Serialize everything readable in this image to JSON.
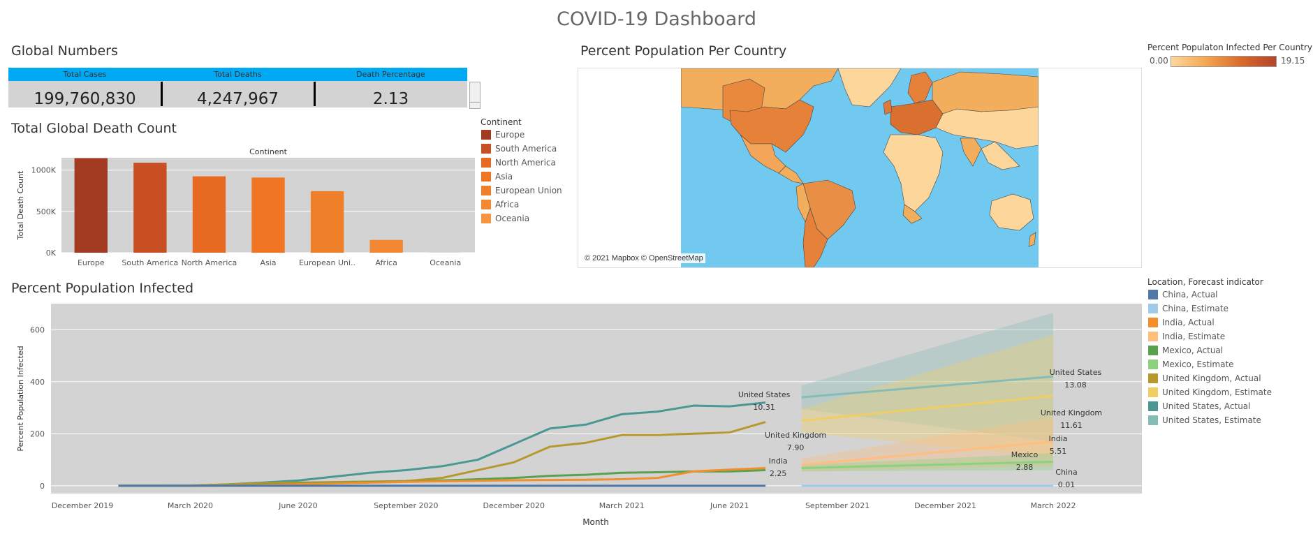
{
  "dashboard": {
    "title": "COVID-19 Dashboard"
  },
  "global_numbers": {
    "title": "Global Numbers",
    "headers": [
      "Total Cases",
      "Total Deaths",
      "Death Percentage"
    ],
    "values": [
      "199,760,830",
      "4,247,967",
      "2.13"
    ],
    "header_color": "#00a9f4"
  },
  "death_count": {
    "title": "Total Global Death Count",
    "legend_title": "Continent",
    "legend": [
      {
        "label": "Europe",
        "color": "#a33a22"
      },
      {
        "label": "South America",
        "color": "#c74f22"
      },
      {
        "label": "North America",
        "color": "#e66a22"
      },
      {
        "label": "Asia",
        "color": "#ef7522"
      },
      {
        "label": "European Union",
        "color": "#f07f29"
      },
      {
        "label": "Africa",
        "color": "#f48732"
      },
      {
        "label": "Oceania",
        "color": "#f79440"
      }
    ]
  },
  "map": {
    "title": "Percent Population Per Country",
    "credit": "© 2021 Mapbox © OpenStreetMap",
    "legend_title": "Percent Populaton Infected Per Country",
    "legend_min": "0.00",
    "legend_max": "19.15",
    "ocean_color": "#71c9ef"
  },
  "infected": {
    "title": "Percent Population Infected",
    "legend_title": "Location, Forecast indicator",
    "legend": [
      {
        "label": "China, Actual",
        "color": "#4e79a7"
      },
      {
        "label": "China, Estimate",
        "color": "#a0cbe8"
      },
      {
        "label": "India, Actual",
        "color": "#f28e2b"
      },
      {
        "label": "India, Estimate",
        "color": "#ffbe7d"
      },
      {
        "label": "Mexico, Actual",
        "color": "#59a14f"
      },
      {
        "label": "Mexico, Estimate",
        "color": "#8cd17d"
      },
      {
        "label": "United Kingdom, Actual",
        "color": "#b6992d"
      },
      {
        "label": "United Kingdom, Estimate",
        "color": "#f1ce63"
      },
      {
        "label": "United States, Actual",
        "color": "#499894"
      },
      {
        "label": "United States, Estimate",
        "color": "#86bcb6"
      }
    ]
  },
  "chart_data": [
    {
      "type": "bar",
      "title": "",
      "header": "Continent",
      "xlabel": "",
      "ylabel": "Total Death Count",
      "categories": [
        "Europe",
        "South America",
        "North America",
        "Asia",
        "European Union",
        "Africa",
        "Oceania"
      ],
      "tick_labels": [
        "Europe",
        "South America",
        "North America",
        "Asia",
        "European Uni..",
        "Africa",
        "Oceania"
      ],
      "values": [
        1145000,
        1090000,
        925000,
        910000,
        745000,
        155000,
        1200
      ],
      "ylim": [
        0,
        1150000
      ],
      "yticks": [
        0,
        500000,
        1000000
      ],
      "ytick_labels": [
        "0K",
        "500K",
        "1000K"
      ],
      "grid": true,
      "legend_position": "right"
    },
    {
      "type": "line",
      "title": "",
      "xlabel": "Month",
      "ylabel": "Percent Population Infected",
      "x_ticks": [
        "December 2019",
        "March 2020",
        "June 2020",
        "September 2020",
        "December 2020",
        "March 2021",
        "June 2021",
        "September 2021",
        "December 2021",
        "March 2022"
      ],
      "ylim": [
        -30,
        700
      ],
      "yticks": [
        0,
        200,
        400,
        600
      ],
      "grid": true,
      "legend_position": "right",
      "actual_months": [
        "2020-01",
        "2020-02",
        "2020-03",
        "2020-04",
        "2020-05",
        "2020-06",
        "2020-07",
        "2020-08",
        "2020-09",
        "2020-10",
        "2020-11",
        "2020-12",
        "2021-01",
        "2021-02",
        "2021-03",
        "2021-04",
        "2021-05",
        "2021-06",
        "2021-07"
      ],
      "forecast_months": [
        "2021-08",
        "2022-03"
      ],
      "series": [
        {
          "name": "United States",
          "forecast_indicator": "Actual",
          "values": [
            0,
            0,
            0,
            5,
            12,
            20,
            35,
            50,
            60,
            75,
            100,
            160,
            220,
            235,
            275,
            285,
            308,
            305,
            320
          ]
        },
        {
          "name": "United Kingdom",
          "forecast_indicator": "Actual",
          "values": [
            0,
            0,
            1,
            5,
            10,
            12,
            14,
            16,
            18,
            30,
            60,
            90,
            150,
            165,
            195,
            195,
            200,
            205,
            245
          ]
        },
        {
          "name": "Mexico",
          "forecast_indicator": "Actual",
          "values": [
            0,
            0,
            0,
            2,
            5,
            8,
            11,
            14,
            16,
            20,
            25,
            30,
            38,
            42,
            50,
            52,
            55,
            55,
            60
          ]
        },
        {
          "name": "India",
          "forecast_indicator": "Actual",
          "values": [
            0,
            0,
            0,
            1,
            3,
            6,
            9,
            12,
            15,
            17,
            19,
            21,
            22,
            23,
            25,
            30,
            55,
            62,
            68
          ]
        },
        {
          "name": "China",
          "forecast_indicator": "Actual",
          "values": [
            0,
            0,
            0,
            0,
            0,
            0,
            0,
            0,
            0,
            0,
            0,
            0,
            0,
            0,
            0,
            0,
            0,
            0,
            0
          ]
        },
        {
          "name": "United States",
          "forecast_indicator": "Estimate",
          "values": [
            340,
            420
          ],
          "band_low": [
            295,
            170
          ],
          "band_high": [
            385,
            665
          ]
        },
        {
          "name": "United Kingdom",
          "forecast_indicator": "Estimate",
          "values": [
            250,
            345
          ],
          "band_low": [
            205,
            110
          ],
          "band_high": [
            295,
            580
          ]
        },
        {
          "name": "India",
          "forecast_indicator": "Estimate",
          "values": [
            80,
            170
          ],
          "band_low": [
            55,
            75
          ],
          "band_high": [
            105,
            265
          ]
        },
        {
          "name": "Mexico",
          "forecast_indicator": "Estimate",
          "values": [
            68,
            92
          ],
          "band_low": [
            55,
            60
          ],
          "band_high": [
            80,
            125
          ]
        },
        {
          "name": "China",
          "forecast_indicator": "Estimate",
          "values": [
            0,
            0
          ]
        }
      ],
      "annotations": [
        {
          "series": "United States",
          "text": "United States",
          "value": "10.31"
        },
        {
          "series": "United Kingdom",
          "text": "United Kingdom",
          "value": "7.90"
        },
        {
          "series": "India",
          "text": "India",
          "value": "2.25"
        },
        {
          "series": "United States",
          "text": "United States",
          "value": "13.08"
        },
        {
          "series": "United Kingdom",
          "text": "United Kingdom",
          "value": "11.61"
        },
        {
          "series": "India",
          "text": "India",
          "value": "5.51"
        },
        {
          "series": "Mexico",
          "text": "Mexico",
          "value": "2.88"
        },
        {
          "series": "China",
          "text": "China",
          "value": "0.01"
        }
      ]
    }
  ]
}
